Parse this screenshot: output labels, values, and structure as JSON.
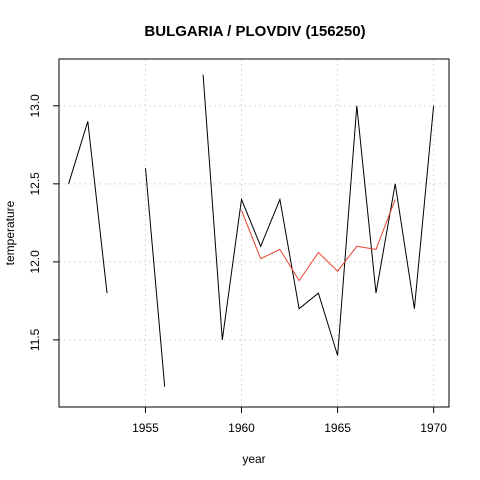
{
  "chart_data": {
    "type": "line",
    "title": "BULGARIA / PLOVDIV (156250)",
    "xlabel": "year",
    "ylabel": "temperature",
    "xlim": [
      1950.5,
      1970.8
    ],
    "ylim": [
      11.07,
      13.3
    ],
    "x_ticks": [
      1955,
      1960,
      1965,
      1970
    ],
    "y_ticks": [
      11.5,
      12.0,
      12.5,
      13.0
    ],
    "x_tick_labels": [
      "1955",
      "1960",
      "1965",
      "1970"
    ],
    "y_tick_labels": [
      "11.5",
      "12.0",
      "12.5",
      "13.0"
    ],
    "grid": true,
    "series": [
      {
        "color": "#000000",
        "points": [
          [
            1951,
            12.5
          ],
          [
            1952,
            12.9
          ],
          [
            1953,
            11.8
          ],
          [
            1954,
            null
          ],
          [
            1955,
            12.6
          ],
          [
            1956,
            11.2
          ],
          [
            1957,
            null
          ],
          [
            1958,
            13.2
          ],
          [
            1959,
            11.5
          ],
          [
            1960,
            12.4
          ],
          [
            1961,
            12.1
          ],
          [
            1962,
            12.4
          ],
          [
            1963,
            11.7
          ],
          [
            1964,
            11.8
          ],
          [
            1965,
            11.4
          ],
          [
            1966,
            13.0
          ],
          [
            1967,
            11.8
          ],
          [
            1968,
            12.5
          ],
          [
            1969,
            11.7
          ],
          [
            1970,
            13.0
          ]
        ]
      },
      {
        "color": "#e8432d",
        "points": [
          [
            1960,
            12.33
          ],
          [
            1961,
            12.02
          ],
          [
            1962,
            12.08
          ],
          [
            1963,
            11.88
          ],
          [
            1964,
            12.06
          ],
          [
            1965,
            11.94
          ],
          [
            1966,
            12.1
          ],
          [
            1967,
            12.08
          ],
          [
            1968,
            12.4
          ]
        ]
      }
    ]
  }
}
